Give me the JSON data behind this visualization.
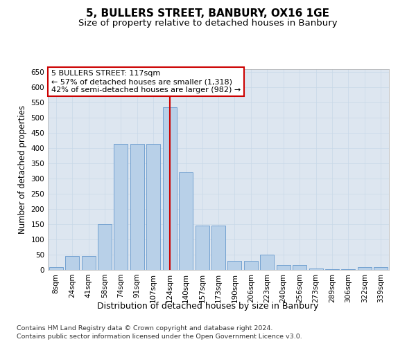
{
  "title1": "5, BULLERS STREET, BANBURY, OX16 1GE",
  "title2": "Size of property relative to detached houses in Banbury",
  "xlabel": "Distribution of detached houses by size in Banbury",
  "ylabel": "Number of detached properties",
  "categories": [
    "8sqm",
    "24sqm",
    "41sqm",
    "58sqm",
    "74sqm",
    "91sqm",
    "107sqm",
    "124sqm",
    "140sqm",
    "157sqm",
    "173sqm",
    "190sqm",
    "206sqm",
    "223sqm",
    "240sqm",
    "256sqm",
    "273sqm",
    "289sqm",
    "306sqm",
    "322sqm",
    "339sqm"
  ],
  "values": [
    10,
    45,
    45,
    150,
    415,
    415,
    415,
    535,
    320,
    145,
    145,
    30,
    30,
    50,
    15,
    15,
    5,
    2,
    2,
    8,
    8
  ],
  "bar_color": "#b8d0e8",
  "bar_edge_color": "#6699cc",
  "vline_color": "#cc0000",
  "vline_x_index": 7,
  "annotation_line1": "5 BULLERS STREET: 117sqm",
  "annotation_line2": "← 57% of detached houses are smaller (1,318)",
  "annotation_line3": "42% of semi-detached houses are larger (982) →",
  "annotation_box_color": "#ffffff",
  "annotation_box_edge": "#cc0000",
  "ylim_max": 660,
  "ytick_step": 50,
  "bg_color": "#dde6f0",
  "footer1": "Contains HM Land Registry data © Crown copyright and database right 2024.",
  "footer2": "Contains public sector information licensed under the Open Government Licence v3.0.",
  "title1_fontsize": 11,
  "title2_fontsize": 9.5,
  "xlabel_fontsize": 9,
  "ylabel_fontsize": 8.5,
  "tick_fontsize": 7.5,
  "footer_fontsize": 6.8,
  "annot_fontsize": 8
}
